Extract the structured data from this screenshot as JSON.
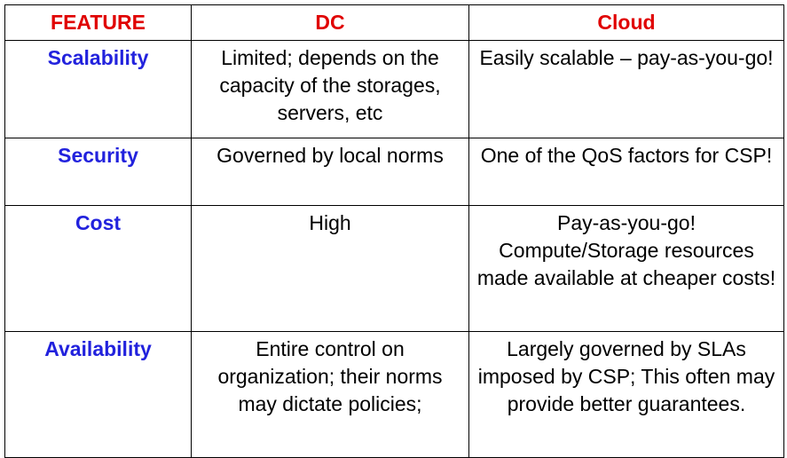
{
  "colors": {
    "header": "#e00000",
    "feature": "#2222dd",
    "text": "#000000",
    "border": "#000000"
  },
  "headers": {
    "feature": "FEATURE",
    "dc": "DC",
    "cloud": "Cloud"
  },
  "rows": [
    {
      "feature": "Scalability",
      "dc": "Limited; depends on the capacity of the storages, servers, etc",
      "cloud": "Easily scalable – pay-as-you-go!"
    },
    {
      "feature": "Security",
      "dc": "Governed by local norms",
      "cloud": "One of the QoS factors for CSP!"
    },
    {
      "feature": "Cost",
      "dc": "High",
      "cloud": "Pay-as-you-go! Compute/Storage resources made available at cheaper costs!"
    },
    {
      "feature": "Availability",
      "dc": "Entire control on organization; their norms may dictate policies;",
      "cloud": "Largely governed by SLAs imposed by CSP; This often may provide better guarantees."
    }
  ]
}
